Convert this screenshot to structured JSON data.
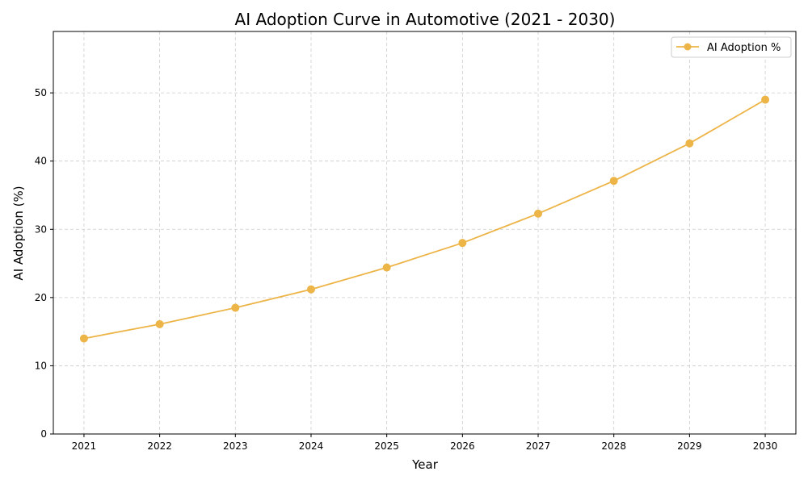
{
  "chart_data": {
    "type": "line",
    "title": "AI Adoption Curve in Automotive (2021 - 2030)",
    "xlabel": "Year",
    "ylabel": "AI Adoption (%)",
    "x": [
      2021,
      2022,
      2023,
      2024,
      2025,
      2026,
      2027,
      2028,
      2029,
      2030
    ],
    "x_tick_labels": [
      "2021",
      "2022",
      "2023",
      "2024",
      "2025",
      "2026",
      "2027",
      "2028",
      "2029",
      "2030"
    ],
    "y_ticks": [
      0,
      10,
      20,
      30,
      40,
      50
    ],
    "y_tick_labels": [
      "0",
      "10",
      "20",
      "30",
      "40",
      "50"
    ],
    "ylim": [
      0,
      59
    ],
    "grid": true,
    "legend_position": "top-right",
    "series": [
      {
        "name": "AI Adoption %",
        "color": "#EDB447",
        "marker": "circle",
        "values": [
          14.0,
          16.1,
          18.5,
          21.2,
          24.4,
          28.0,
          32.3,
          37.1,
          42.6,
          49.0
        ]
      }
    ]
  }
}
